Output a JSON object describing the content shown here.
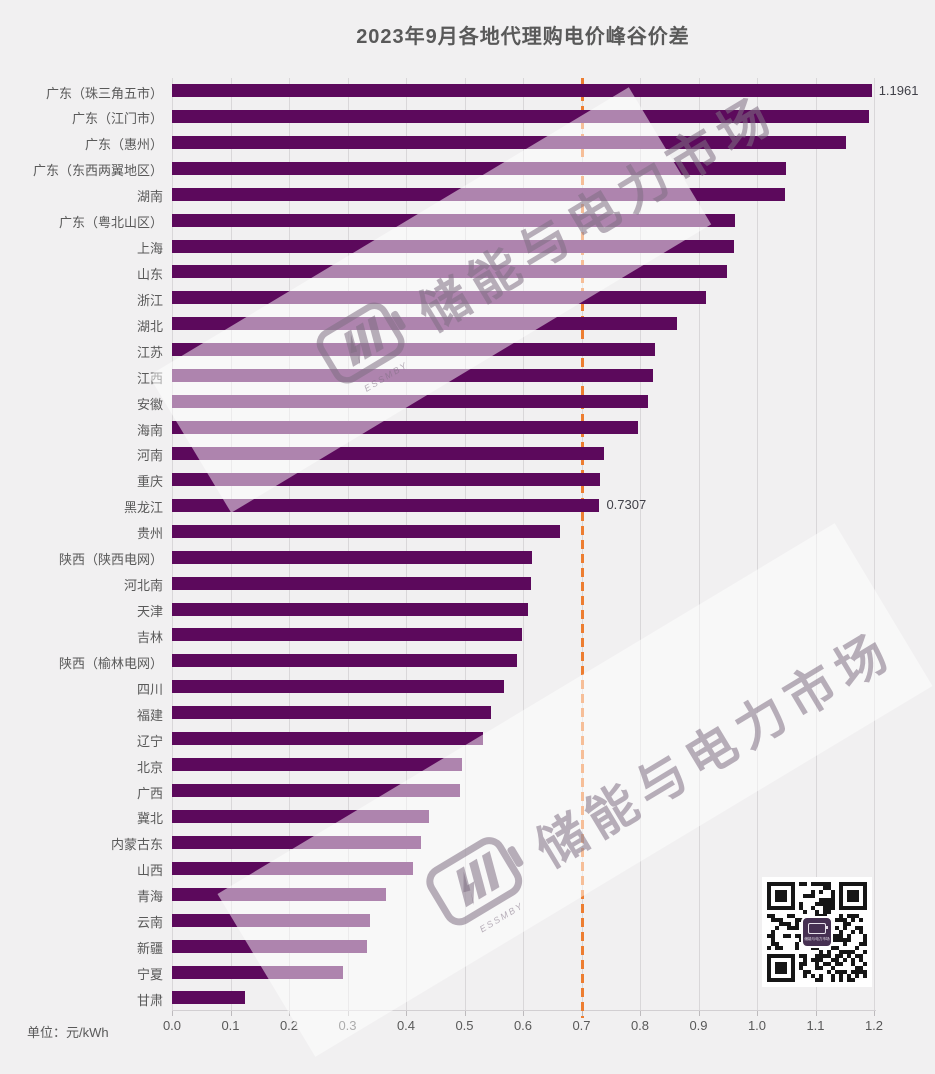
{
  "title": "2023年9月各地代理购电价峰谷价差",
  "unit_label": "单位：元/kWh",
  "colors": {
    "background": "#f1f0f1",
    "bar": "#5C095C",
    "reference_line": "#ED7D31",
    "gridline": "#d9d7d9",
    "text": "#595959",
    "data_label": "#404048"
  },
  "watermark": {
    "text": "储能与电力市场",
    "subtext": "ESSMBY"
  },
  "qr_code": {
    "description": "wechat-qr-code"
  },
  "chart_data": {
    "type": "bar",
    "orientation": "horizontal",
    "title": "2023年9月各地代理购电价峰谷价差",
    "xlabel": "",
    "ylabel": "",
    "unit": "元/kWh",
    "xlim": [
      0,
      1.2
    ],
    "xtick_labels": [
      "0.0",
      "0.1",
      "0.2",
      "0.3",
      "0.4",
      "0.5",
      "0.6",
      "0.7",
      "0.8",
      "0.9",
      "1.0",
      "1.1",
      "1.2"
    ],
    "grid": true,
    "reference_line": {
      "value": 0.7,
      "style": "dashed",
      "color": "#ED7D31"
    },
    "categories": [
      "广东（珠三角五市）",
      "广东（江门市）",
      "广东（惠州）",
      "广东（东西两翼地区）",
      "湖南",
      "广东（粤北山区）",
      "上海",
      "山东",
      "浙江",
      "湖北",
      "江苏",
      "江西",
      "安徽",
      "海南",
      "河南",
      "重庆",
      "黑龙江",
      "贵州",
      "陕西（陕西电网）",
      "河北南",
      "天津",
      "吉林",
      "陕西（榆林电网）",
      "四川",
      "福建",
      "辽宁",
      "北京",
      "广西",
      "冀北",
      "内蒙古东",
      "山西",
      "青海",
      "云南",
      "新疆",
      "宁夏",
      "甘肃"
    ],
    "values": [
      1.1961,
      1.192,
      1.152,
      1.049,
      1.048,
      0.963,
      0.961,
      0.948,
      0.913,
      0.864,
      0.825,
      0.823,
      0.813,
      0.797,
      0.738,
      0.732,
      0.7307,
      0.664,
      0.616,
      0.613,
      0.609,
      0.598,
      0.59,
      0.568,
      0.546,
      0.532,
      0.496,
      0.493,
      0.439,
      0.425,
      0.412,
      0.365,
      0.339,
      0.333,
      0.293,
      0.125
    ],
    "data_labels": [
      {
        "index": 0,
        "text": "1.1961"
      },
      {
        "index": 16,
        "text": "0.7307"
      }
    ]
  }
}
